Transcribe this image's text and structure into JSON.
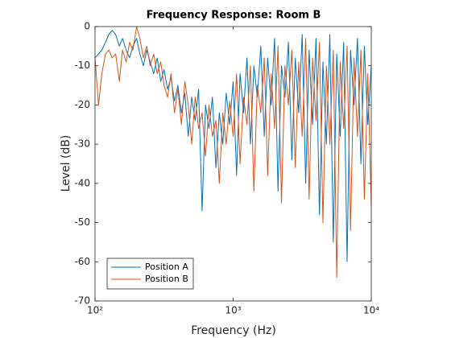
{
  "chart_data": {
    "type": "line",
    "title": "Frequency Response: Room B",
    "xlabel": "Frequency (Hz)",
    "ylabel": "Level (dB)",
    "xscale": "log",
    "xlim": [
      100,
      10000
    ],
    "xticks": [
      {
        "value": 100,
        "label": "10²"
      },
      {
        "value": 1000,
        "label": "10³"
      },
      {
        "value": 10000,
        "label": "10⁴"
      }
    ],
    "ylim": [
      -70,
      0
    ],
    "yticks": [
      -70,
      -60,
      -50,
      -40,
      -30,
      -20,
      -10,
      0
    ],
    "legend": "lower left",
    "x": [
      100,
      106,
      112,
      119,
      126,
      133,
      141,
      150,
      158,
      168,
      178,
      188,
      200,
      211,
      224,
      237,
      251,
      266,
      282,
      299,
      316,
      335,
      355,
      376,
      398,
      422,
      447,
      473,
      501,
      531,
      562,
      596,
      631,
      668,
      708,
      750,
      794,
      841,
      891,
      944,
      1000,
      1059,
      1122,
      1189,
      1259,
      1334,
      1413,
      1496,
      1585,
      1679,
      1778,
      1884,
      1995,
      2113,
      2239,
      2371,
      2512,
      2661,
      2818,
      2985,
      3162,
      3350,
      3548,
      3758,
      3981,
      4217,
      4467,
      4732,
      5012,
      5309,
      5623,
      5957,
      6310,
      6683,
      7079,
      7499,
      7943,
      8414,
      8913,
      9441,
      10000
    ],
    "series": [
      {
        "name": "Position A",
        "color": "#0072BD",
        "values": [
          -8,
          -7,
          -6,
          -4,
          -2,
          -1,
          -2,
          -5,
          -3,
          -6,
          -8,
          -5,
          -3,
          -7,
          -10,
          -6,
          -9,
          -12,
          -8,
          -14,
          -11,
          -16,
          -13,
          -19,
          -15,
          -22,
          -17,
          -28,
          -18,
          -24,
          -16,
          -47,
          -20,
          -26,
          -18,
          -36,
          -22,
          -30,
          -17,
          -25,
          -14,
          -38,
          -12,
          -22,
          -8,
          -30,
          -10,
          -18,
          -5,
          -28,
          -8,
          -20,
          -3,
          -42,
          -10,
          -18,
          -4,
          -34,
          -8,
          -22,
          -2,
          -40,
          -6,
          -25,
          -3,
          -48,
          -9,
          -30,
          -2,
          -55,
          -7,
          -28,
          -4,
          -60,
          -6,
          -20,
          -3,
          -35,
          -5,
          -25,
          -10
        ]
      },
      {
        "name": "Position B",
        "color": "#D95319",
        "values": [
          -8,
          -20,
          -12,
          -7,
          -6,
          -8,
          -7,
          -14,
          -6,
          -9,
          -4,
          -6,
          0,
          -3,
          -8,
          -5,
          -10,
          -7,
          -12,
          -9,
          -15,
          -18,
          -12,
          -22,
          -16,
          -25,
          -14,
          -20,
          -30,
          -18,
          -26,
          -22,
          -33,
          -20,
          -28,
          -24,
          -40,
          -22,
          -30,
          -19,
          -28,
          -12,
          -35,
          -18,
          -25,
          -10,
          -42,
          -15,
          -22,
          -8,
          -38,
          -12,
          -26,
          -5,
          -45,
          -10,
          -20,
          -6,
          -36,
          -9,
          -28,
          -3,
          -44,
          -8,
          -24,
          -4,
          -50,
          -10,
          -30,
          -6,
          -64,
          -9,
          -26,
          -5,
          -52,
          -8,
          -28,
          -6,
          -44,
          -12,
          -46
        ]
      }
    ]
  }
}
